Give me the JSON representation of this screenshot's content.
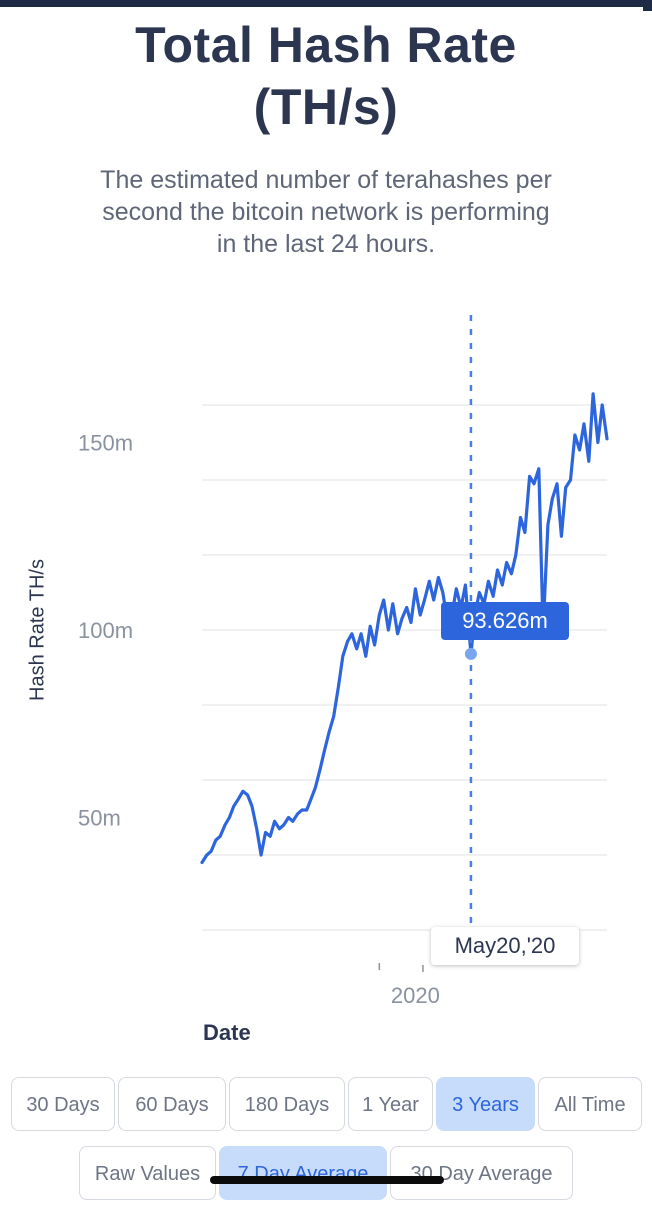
{
  "header": {
    "title_line1": "Total Hash Rate",
    "title_line2": "(TH/s)",
    "subtitle_line1": "The estimated number of terahashes per",
    "subtitle_line2": "second the bitcoin network is performing",
    "subtitle_line3": "in the last 24 hours."
  },
  "chart_data": {
    "type": "line",
    "title": "Total Hash Rate (TH/s)",
    "xlabel": "Date",
    "ylabel": "Hash Rate TH/s",
    "ytick_labels": [
      "50m",
      "100m",
      "150m"
    ],
    "xtick_labels": [
      "2020"
    ],
    "ylim": [
      20,
      170
    ],
    "grid": true,
    "line_color": "#2d66dc",
    "series": [
      {
        "values": [
          {
            "x": "2018-07-12",
            "y": 38
          },
          {
            "x": "2018-07-24",
            "y": 40
          },
          {
            "x": "2018-08-04",
            "y": 41
          },
          {
            "x": "2018-08-16",
            "y": 44
          },
          {
            "x": "2018-08-27",
            "y": 45
          },
          {
            "x": "2018-09-08",
            "y": 48
          },
          {
            "x": "2018-09-19",
            "y": 50
          },
          {
            "x": "2018-09-30",
            "y": 53
          },
          {
            "x": "2018-10-12",
            "y": 55
          },
          {
            "x": "2018-10-23",
            "y": 57
          },
          {
            "x": "2018-11-04",
            "y": 56
          },
          {
            "x": "2018-11-15",
            "y": 53
          },
          {
            "x": "2018-11-27",
            "y": 47
          },
          {
            "x": "2018-12-08",
            "y": 40
          },
          {
            "x": "2018-12-19",
            "y": 46
          },
          {
            "x": "2018-12-31",
            "y": 45
          },
          {
            "x": "2019-01-11",
            "y": 49
          },
          {
            "x": "2019-01-23",
            "y": 47
          },
          {
            "x": "2019-02-03",
            "y": 48
          },
          {
            "x": "2019-02-15",
            "y": 50
          },
          {
            "x": "2019-02-26",
            "y": 49
          },
          {
            "x": "2019-03-10",
            "y": 51
          },
          {
            "x": "2019-03-21",
            "y": 52
          },
          {
            "x": "2019-04-02",
            "y": 52
          },
          {
            "x": "2019-04-13",
            "y": 55
          },
          {
            "x": "2019-04-24",
            "y": 58
          },
          {
            "x": "2019-05-06",
            "y": 63
          },
          {
            "x": "2019-05-17",
            "y": 68
          },
          {
            "x": "2019-05-29",
            "y": 73
          },
          {
            "x": "2019-06-09",
            "y": 77
          },
          {
            "x": "2019-06-21",
            "y": 85
          },
          {
            "x": "2019-07-02",
            "y": 93
          },
          {
            "x": "2019-07-14",
            "y": 97
          },
          {
            "x": "2019-07-25",
            "y": 99
          },
          {
            "x": "2019-08-06",
            "y": 95
          },
          {
            "x": "2019-08-17",
            "y": 99
          },
          {
            "x": "2019-08-29",
            "y": 93
          },
          {
            "x": "2019-09-09",
            "y": 101
          },
          {
            "x": "2019-09-20",
            "y": 96
          },
          {
            "x": "2019-10-02",
            "y": 104
          },
          {
            "x": "2019-10-13",
            "y": 108
          },
          {
            "x": "2019-10-25",
            "y": 100
          },
          {
            "x": "2019-11-05",
            "y": 107
          },
          {
            "x": "2019-11-17",
            "y": 99
          },
          {
            "x": "2019-11-28",
            "y": 103
          },
          {
            "x": "2019-12-10",
            "y": 106
          },
          {
            "x": "2019-12-21",
            "y": 102
          },
          {
            "x": "2020-01-01",
            "y": 111
          },
          {
            "x": "2020-01-13",
            "y": 104
          },
          {
            "x": "2020-01-24",
            "y": 108
          },
          {
            "x": "2020-02-05",
            "y": 113
          },
          {
            "x": "2020-02-16",
            "y": 108
          },
          {
            "x": "2020-02-28",
            "y": 114
          },
          {
            "x": "2020-03-10",
            "y": 110
          },
          {
            "x": "2020-03-21",
            "y": 103
          },
          {
            "x": "2020-04-02",
            "y": 104
          },
          {
            "x": "2020-04-13",
            "y": 111
          },
          {
            "x": "2020-04-25",
            "y": 106
          },
          {
            "x": "2020-05-06",
            "y": 112
          },
          {
            "x": "2020-05-20",
            "y": 93.626
          },
          {
            "x": "2020-05-30",
            "y": 104
          },
          {
            "x": "2020-06-10",
            "y": 110
          },
          {
            "x": "2020-06-22",
            "y": 107
          },
          {
            "x": "2020-07-03",
            "y": 113
          },
          {
            "x": "2020-07-15",
            "y": 109
          },
          {
            "x": "2020-07-26",
            "y": 116
          },
          {
            "x": "2020-08-07",
            "y": 112
          },
          {
            "x": "2020-08-18",
            "y": 118
          },
          {
            "x": "2020-08-30",
            "y": 115
          },
          {
            "x": "2020-09-10",
            "y": 120
          },
          {
            "x": "2020-09-22",
            "y": 130
          },
          {
            "x": "2020-10-03",
            "y": 126
          },
          {
            "x": "2020-10-15",
            "y": 141
          },
          {
            "x": "2020-10-26",
            "y": 139
          },
          {
            "x": "2020-11-07",
            "y": 143
          },
          {
            "x": "2020-11-18",
            "y": 100
          },
          {
            "x": "2020-11-30",
            "y": 128
          },
          {
            "x": "2020-12-11",
            "y": 135
          },
          {
            "x": "2020-12-23",
            "y": 139
          },
          {
            "x": "2021-01-03",
            "y": 125
          },
          {
            "x": "2021-01-14",
            "y": 138
          },
          {
            "x": "2021-01-26",
            "y": 140
          },
          {
            "x": "2021-02-06",
            "y": 152
          },
          {
            "x": "2021-02-18",
            "y": 148
          },
          {
            "x": "2021-03-01",
            "y": 155
          },
          {
            "x": "2021-03-13",
            "y": 145
          },
          {
            "x": "2021-03-24",
            "y": 163
          },
          {
            "x": "2021-04-05",
            "y": 150
          },
          {
            "x": "2021-04-16",
            "y": 160
          },
          {
            "x": "2021-04-28",
            "y": 151
          }
        ]
      }
    ],
    "selected_point": {
      "x": "2020-05-20",
      "y": 93.626,
      "value_label": "93.626m",
      "date_label": "May20,'20"
    }
  },
  "controls": {
    "ranges": [
      "30 Days",
      "60 Days",
      "180 Days",
      "1 Year",
      "3 Years",
      "All Time"
    ],
    "active_range": "3 Years",
    "averages": [
      "Raw Values",
      "7 Day Average",
      "30 Day Average"
    ],
    "active_average": "7 Day Average"
  }
}
